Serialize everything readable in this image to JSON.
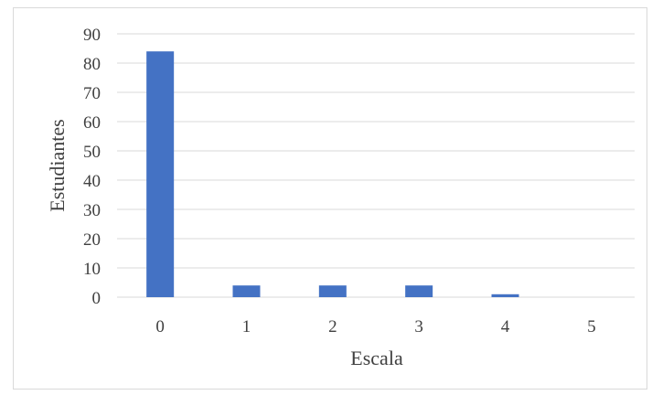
{
  "chart_data": {
    "type": "bar",
    "title": "",
    "xlabel": "Escala",
    "ylabel": "Estudiantes",
    "categories": [
      "0",
      "1",
      "2",
      "3",
      "4",
      "5"
    ],
    "values": [
      84,
      4,
      4,
      4,
      1,
      0
    ],
    "ylim": [
      0,
      90
    ],
    "yticks": [
      "0",
      "10",
      "20",
      "30",
      "40",
      "50",
      "60",
      "70",
      "80",
      "90"
    ],
    "grid": true,
    "legend": "none",
    "bar_color": "#4472c4",
    "grid_color": "#d9d9d9"
  }
}
